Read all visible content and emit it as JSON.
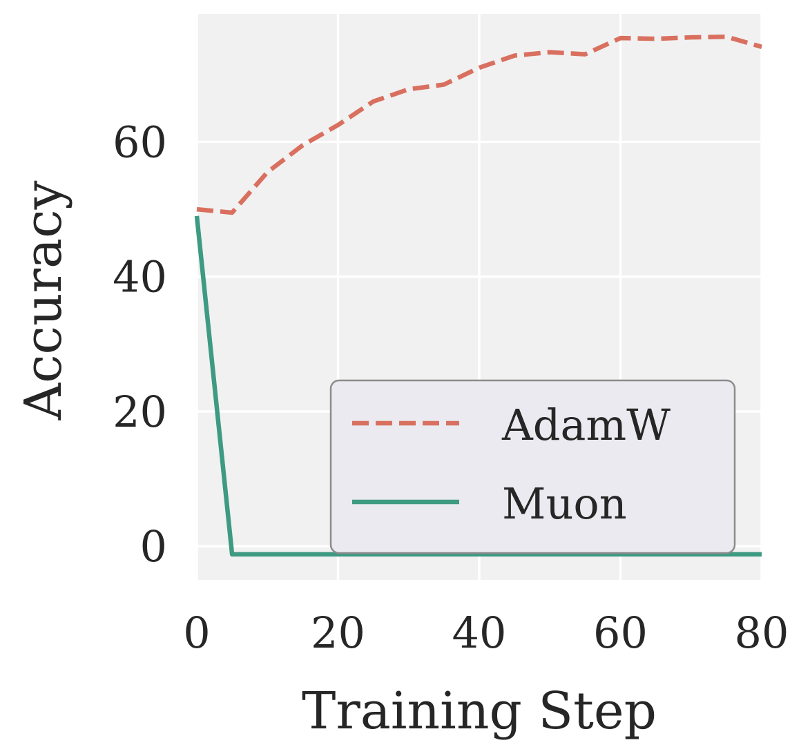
{
  "chart_data": {
    "type": "line",
    "xlabel": "Training Step",
    "ylabel": "Accuracy",
    "xlim": [
      0,
      80
    ],
    "ylim": [
      -5,
      79
    ],
    "xticks": [
      0,
      20,
      40,
      60,
      80
    ],
    "yticks": [
      0,
      20,
      40,
      60
    ],
    "grid": true,
    "legend_position": "lower-right",
    "series": [
      {
        "name": "AdamW",
        "color": "#d9705f",
        "style": "dashed",
        "x": [
          0,
          5,
          10,
          15,
          20,
          25,
          30,
          35,
          40,
          45,
          50,
          55,
          60,
          65,
          70,
          75,
          80
        ],
        "y": [
          50,
          49.5,
          55.5,
          59.5,
          62.5,
          66.0,
          67.8,
          68.5,
          71.0,
          72.8,
          73.3,
          73.0,
          75.4,
          75.3,
          75.5,
          75.6,
          74.1
        ]
      },
      {
        "name": "Muon",
        "color": "#3e9a82",
        "style": "solid",
        "x": [
          0,
          5,
          10,
          20,
          30,
          40,
          50,
          60,
          70,
          80
        ],
        "y": [
          49,
          -1.2,
          -1.2,
          -1.2,
          -1.2,
          -1.2,
          -1.2,
          -1.2,
          -1.2,
          -1.2
        ]
      }
    ]
  }
}
